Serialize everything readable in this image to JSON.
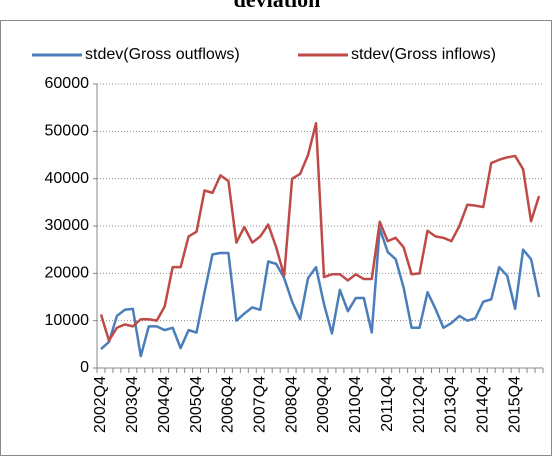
{
  "chart_data": {
    "type": "line",
    "title": "deviation",
    "categories": [
      "2002Q4",
      null,
      null,
      null,
      "2003Q4",
      null,
      null,
      null,
      "2004Q4",
      null,
      null,
      null,
      "2005Q4",
      null,
      null,
      null,
      "2006Q4",
      null,
      null,
      null,
      "2007Q4",
      null,
      null,
      null,
      "2008Q4",
      null,
      null,
      null,
      "2009Q4",
      null,
      null,
      null,
      "2010Q4",
      null,
      null,
      null,
      "2011Q4",
      null,
      null,
      null,
      "2012Q4",
      null,
      null,
      null,
      "2013Q4",
      null,
      null,
      null,
      "2014Q4",
      null,
      null,
      null,
      "2015Q4",
      null,
      null,
      null
    ],
    "series": [
      {
        "name": "stdev(Gross outflows)",
        "color": "#4a7ebb",
        "values": [
          4000,
          5500,
          11000,
          12300,
          12500,
          2500,
          8800,
          8800,
          8000,
          8500,
          4200,
          8000,
          7500,
          16000,
          24000,
          24300,
          24300,
          10000,
          11500,
          12800,
          12300,
          22500,
          22000,
          19000,
          14000,
          10300,
          19000,
          21300,
          13500,
          7300,
          16500,
          12000,
          14800,
          14800,
          7500,
          29500,
          24500,
          23000,
          17000,
          8500,
          8500,
          16000,
          12500,
          8500,
          9500,
          11000,
          10000,
          10500,
          14000,
          14500,
          21300,
          19500,
          12500,
          25000,
          23000,
          15000
        ]
      },
      {
        "name": "stdev(Gross inflows)",
        "color": "#be4b48",
        "values": [
          11300,
          5800,
          8500,
          9200,
          8800,
          10300,
          10300,
          10000,
          13000,
          21300,
          21300,
          27800,
          28800,
          37500,
          37000,
          40700,
          39500,
          26500,
          29800,
          26500,
          27800,
          30300,
          25500,
          19500,
          40000,
          41000,
          45000,
          51700,
          19200,
          19800,
          19800,
          18500,
          19800,
          18800,
          18800,
          30900,
          26800,
          27500,
          25500,
          19800,
          20000,
          29000,
          27800,
          27500,
          26800,
          30000,
          34500,
          34300,
          34000,
          43300,
          44000,
          44500,
          44800,
          42000,
          31000,
          36300
        ]
      }
    ],
    "ylim": [
      0,
      60000
    ],
    "yticks": [
      0,
      10000,
      20000,
      30000,
      40000,
      50000,
      60000
    ],
    "grid": true
  }
}
